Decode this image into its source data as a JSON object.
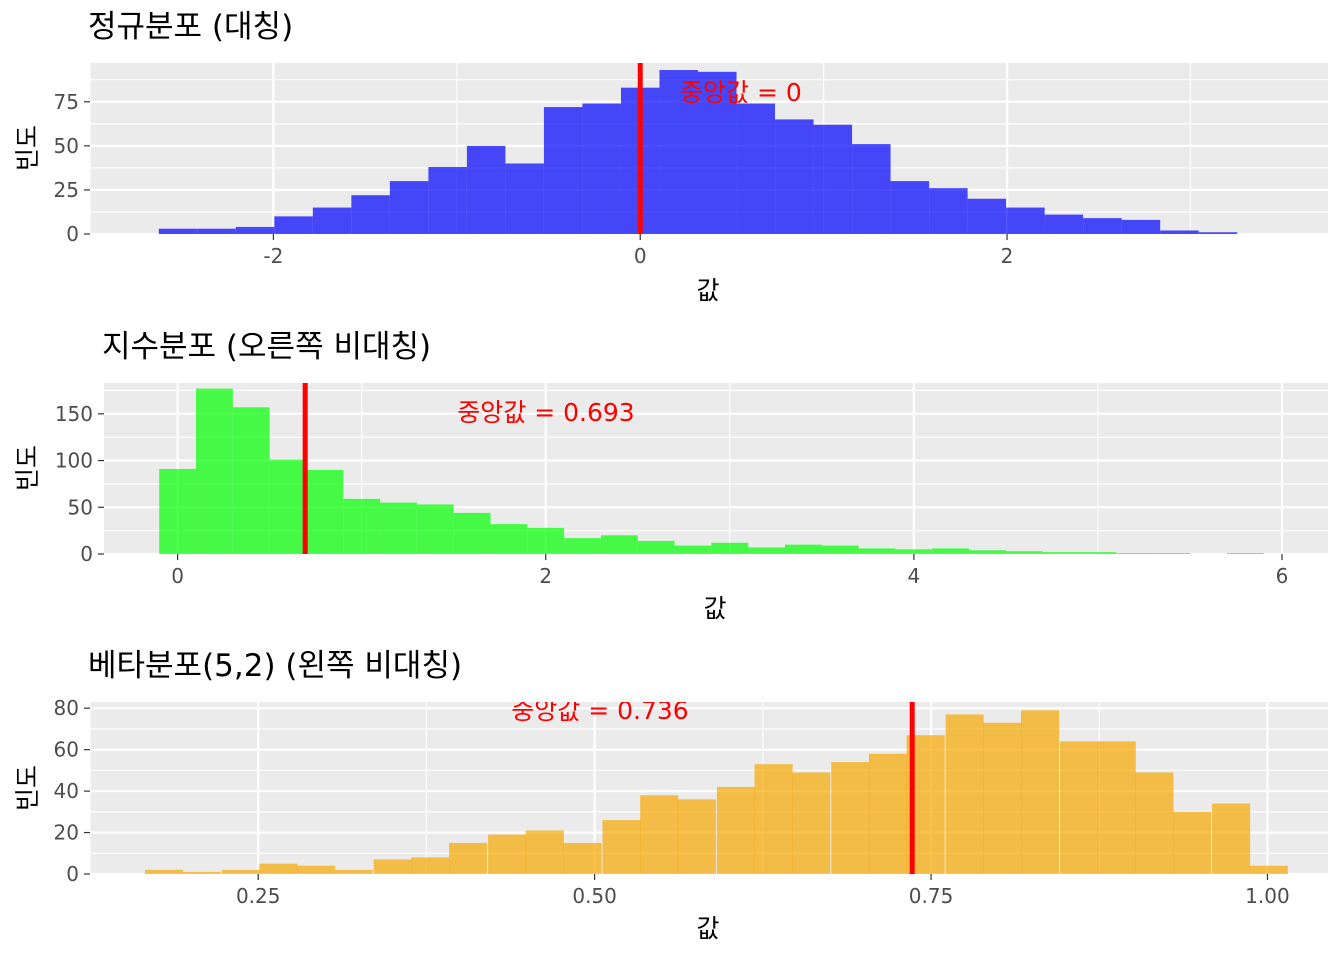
{
  "chart_data": [
    {
      "type": "bar",
      "title": "정규분포 (대칭)",
      "xlabel": "값",
      "ylabel": "빈도",
      "fill_color": "#0000ff",
      "median": 0,
      "annotation": "중앙값 = 0",
      "xlim": [
        -3.0,
        3.75
      ],
      "ylim": [
        0,
        97
      ],
      "x_ticks": [
        -2,
        0,
        2
      ],
      "x_tick_labels": [
        "-2",
        "0",
        "2"
      ],
      "y_ticks": [
        0,
        25,
        50,
        75
      ],
      "y_tick_labels": [
        "0",
        "25",
        "50",
        "75"
      ],
      "bin_width": 0.21,
      "bin_centers": [
        -2.52,
        -2.31,
        -2.1,
        -1.89,
        -1.68,
        -1.47,
        -1.26,
        -1.05,
        -0.84,
        -0.63,
        -0.42,
        -0.21,
        0.0,
        0.21,
        0.42,
        0.63,
        0.84,
        1.05,
        1.26,
        1.47,
        1.68,
        1.89,
        2.1,
        2.31,
        2.52,
        2.73,
        2.94,
        3.15
      ],
      "values": [
        3,
        3,
        4,
        10,
        15,
        22,
        30,
        38,
        50,
        40,
        72,
        74,
        83,
        93,
        92,
        74,
        65,
        62,
        51,
        30,
        26,
        20,
        15,
        11,
        9,
        8,
        2,
        1
      ]
    },
    {
      "type": "bar",
      "title": "지수분포 (오른쪽 비대칭)",
      "xlabel": "값",
      "ylabel": "빈도",
      "fill_color": "#00ff00",
      "median": 0.693,
      "annotation": "중앙값 = 0.693",
      "xlim": [
        -0.4,
        6.25
      ],
      "ylim": [
        0,
        183
      ],
      "x_ticks": [
        0,
        2,
        4,
        6
      ],
      "x_tick_labels": [
        "0",
        "2",
        "4",
        "6"
      ],
      "y_ticks": [
        0,
        50,
        100,
        150
      ],
      "y_tick_labels": [
        "0",
        "50",
        "100",
        "150"
      ],
      "bin_width": 0.2,
      "bin_centers": [
        0.0,
        0.2,
        0.4,
        0.6,
        0.8,
        1.0,
        1.2,
        1.4,
        1.6,
        1.8,
        2.0,
        2.2,
        2.4,
        2.6,
        2.8,
        3.0,
        3.2,
        3.4,
        3.6,
        3.8,
        4.0,
        4.2,
        4.4,
        4.6,
        4.8,
        5.0,
        5.2,
        5.4,
        5.6,
        5.8
      ],
      "values": [
        91,
        177,
        157,
        101,
        90,
        59,
        55,
        53,
        44,
        32,
        28,
        17,
        20,
        14,
        9,
        12,
        7,
        10,
        9,
        6,
        5,
        6,
        4,
        3,
        2,
        2,
        1,
        1,
        0,
        1
      ]
    },
    {
      "type": "bar",
      "title": "베타분포(5,2) (왼쪽 비대칭)",
      "xlabel": "값",
      "ylabel": "빈도",
      "fill_color": "#f7a800",
      "median": 0.736,
      "annotation": "중앙값 = 0.736",
      "xlim": [
        0.125,
        1.045
      ],
      "ylim": [
        0,
        83
      ],
      "x_ticks": [
        0.25,
        0.5,
        0.75,
        1.0
      ],
      "x_tick_labels": [
        "0.25",
        "0.50",
        "0.75",
        "1.00"
      ],
      "y_ticks": [
        0,
        20,
        40,
        60,
        80
      ],
      "y_tick_labels": [
        "0",
        "20",
        "40",
        "60",
        "80"
      ],
      "bin_width": 0.0283,
      "bin_centers": [
        0.18,
        0.208,
        0.237,
        0.265,
        0.293,
        0.321,
        0.35,
        0.378,
        0.406,
        0.435,
        0.463,
        0.491,
        0.52,
        0.548,
        0.576,
        0.605,
        0.633,
        0.661,
        0.69,
        0.718,
        0.746,
        0.775,
        0.803,
        0.831,
        0.86,
        0.888,
        0.916,
        0.944,
        0.973,
        1.001
      ],
      "values": [
        2,
        1,
        2,
        5,
        4,
        2,
        7,
        8,
        15,
        19,
        21,
        15,
        26,
        38,
        36,
        42,
        53,
        49,
        54,
        58,
        67,
        77,
        73,
        79,
        64,
        64,
        49,
        30,
        34,
        4
      ]
    }
  ]
}
